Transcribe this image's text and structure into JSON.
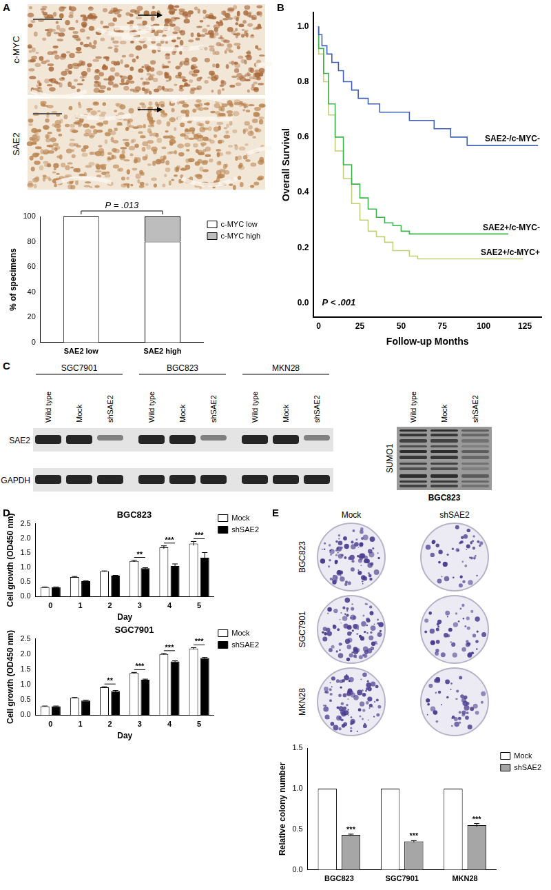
{
  "panel_labels": [
    "A",
    "B",
    "C",
    "D",
    "E"
  ],
  "ihc": {
    "labels": [
      "c-MYC",
      "SAE2"
    ]
  },
  "blot": {
    "groups": [
      "SGC7901",
      "BGC823",
      "MKN28"
    ],
    "lanes": [
      "Wild type",
      "Mock",
      "shSAE2"
    ],
    "rows": [
      "SAE2",
      "GAPDH"
    ],
    "sumo": {
      "lanes": [
        "Wild type",
        "Mock",
        "shSAE2"
      ],
      "row": "SUMO1",
      "cell_line": "BGC823"
    }
  },
  "colonies": {
    "columns": [
      "Mock",
      "shSAE2"
    ],
    "rows": [
      "BGC823",
      "SGC7901",
      "MKN28"
    ]
  },
  "chart_data": [
    {
      "type": "bar",
      "stacked": true,
      "categories": [
        "SAE2 low",
        "SAE2 high"
      ],
      "series": [
        {
          "name": "c-MYC low",
          "color": "#ffffff",
          "values": [
            100,
            80
          ]
        },
        {
          "name": "c-MYC high",
          "color": "#bdbdbd",
          "values": [
            0,
            20
          ]
        }
      ],
      "ylabel": "% of specimens",
      "ylim": [
        0,
        100
      ],
      "yticks": [
        0,
        20,
        40,
        60,
        80,
        100
      ],
      "grid": false,
      "legend": "right",
      "annotations": [
        "P = .013"
      ]
    },
    {
      "type": "line",
      "xlabel": "Follow-up Months",
      "ylabel": "Overall Survival",
      "xlim": [
        -3,
        135
      ],
      "xticks": [
        0,
        25,
        50,
        75,
        100,
        125
      ],
      "ylim": [
        -0.05,
        1.05
      ],
      "yticks": [
        {
          "value": 0,
          "label": "0.0"
        },
        0.2,
        0.4,
        0.6,
        0.8,
        {
          "value": 1,
          "label": "1.0"
        }
      ],
      "grid": false,
      "annotations": [
        "P < .001"
      ],
      "series": [
        {
          "name": "SAE2-/c-MYC-",
          "color": "#3f5fb0",
          "line_style": "step",
          "x": [
            0,
            2,
            5,
            8,
            12,
            15,
            20,
            24,
            30,
            37,
            45,
            55,
            60,
            70,
            80,
            90,
            95,
            133
          ],
          "values": [
            1.0,
            0.97,
            0.93,
            0.9,
            0.87,
            0.84,
            0.8,
            0.77,
            0.74,
            0.72,
            0.69,
            0.69,
            0.66,
            0.66,
            0.63,
            0.6,
            0.57,
            0.57
          ]
        },
        {
          "name": "SAE2+/c-MYC-",
          "color": "#3cb44b",
          "line_style": "step",
          "x": [
            0,
            3,
            6,
            10,
            15,
            20,
            25,
            30,
            35,
            40,
            45,
            50,
            55,
            60,
            80,
            100,
            115
          ],
          "values": [
            1.0,
            0.92,
            0.83,
            0.72,
            0.6,
            0.5,
            0.43,
            0.38,
            0.34,
            0.31,
            0.29,
            0.28,
            0.26,
            0.25,
            0.25,
            0.25,
            0.25
          ]
        },
        {
          "name": "SAE2+/c-MYC+",
          "color": "#c3cf78",
          "line_style": "step",
          "x": [
            0,
            3,
            6,
            10,
            15,
            20,
            25,
            30,
            35,
            40,
            45,
            55,
            60,
            70,
            90,
            124
          ],
          "values": [
            1.0,
            0.9,
            0.8,
            0.68,
            0.55,
            0.45,
            0.36,
            0.3,
            0.26,
            0.24,
            0.22,
            0.19,
            0.17,
            0.16,
            0.16,
            0.16
          ]
        }
      ]
    },
    {
      "type": "bar",
      "title": "BGC823",
      "categories": [
        "0",
        "1",
        "2",
        "3",
        "4",
        "5"
      ],
      "xlabel": "Day",
      "ylabel": "Cell growth (OD450 nm)",
      "ylim": [
        0,
        2.5
      ],
      "yticks": [
        {
          "value": 0,
          "label": "0.0"
        },
        0.5,
        {
          "value": 1,
          "label": "1.0"
        },
        1.5,
        {
          "value": 2,
          "label": "2.0"
        },
        2.5
      ],
      "grid": false,
      "legend": "right",
      "series": [
        {
          "name": "Mock",
          "color": "#ffffff",
          "values": [
            0.32,
            0.67,
            0.87,
            1.22,
            1.69,
            1.82
          ],
          "errors": [
            0.01,
            0.02,
            0.01,
            0.03,
            0.05,
            0.07
          ]
        },
        {
          "name": "shSAE2",
          "color": "#000000",
          "values": [
            0.32,
            0.53,
            0.72,
            0.97,
            1.05,
            1.33
          ],
          "errors": [
            0.01,
            0.01,
            0.01,
            0.02,
            0.07,
            0.18
          ]
        }
      ],
      "significance": [
        {
          "category": "3",
          "label": "**"
        },
        {
          "category": "4",
          "label": "***"
        },
        {
          "category": "5",
          "label": "***"
        }
      ]
    },
    {
      "type": "bar",
      "title": "SGC7901",
      "categories": [
        "0",
        "1",
        "2",
        "3",
        "4",
        "5"
      ],
      "xlabel": "Day",
      "ylabel": "Cell growth (OD450 nm)",
      "ylim": [
        0,
        2.5
      ],
      "yticks": [
        {
          "value": 0,
          "label": "0.0"
        },
        0.5,
        {
          "value": 1,
          "label": "1.0"
        },
        1.5,
        {
          "value": 2,
          "label": "2.0"
        },
        2.5
      ],
      "grid": false,
      "legend": "right",
      "series": [
        {
          "name": "Mock",
          "color": "#ffffff",
          "values": [
            0.29,
            0.57,
            0.91,
            1.38,
            2.0,
            2.18
          ],
          "errors": [
            0.01,
            0.01,
            0.02,
            0.02,
            0.02,
            0.03
          ]
        },
        {
          "name": "shSAE2",
          "color": "#000000",
          "values": [
            0.29,
            0.48,
            0.79,
            1.16,
            1.76,
            1.87
          ],
          "errors": [
            0.01,
            0.01,
            0.02,
            0.02,
            0.02,
            0.02
          ]
        }
      ],
      "significance": [
        {
          "category": "2",
          "label": "**"
        },
        {
          "category": "3",
          "label": "***"
        },
        {
          "category": "4",
          "label": "***"
        },
        {
          "category": "5",
          "label": "***"
        }
      ]
    },
    {
      "type": "bar",
      "categories": [
        "BGC823",
        "SGC7901",
        "MKN28"
      ],
      "ylabel": "Relative colony number",
      "ylim": [
        0,
        1.5
      ],
      "yticks": [
        {
          "value": 0,
          "label": "0.0"
        },
        0.5,
        {
          "value": 1,
          "label": "1.0"
        },
        1.5
      ],
      "grid": false,
      "legend": "right",
      "series": [
        {
          "name": "Mock",
          "color": "#ffffff",
          "values": [
            1,
            1,
            1
          ],
          "errors": [
            0,
            0,
            0
          ]
        },
        {
          "name": "shSAE2",
          "color": "#a6a6a6",
          "values": [
            0.43,
            0.35,
            0.55
          ],
          "errors": [
            0.01,
            0.01,
            0.02
          ]
        }
      ],
      "significance": [
        {
          "category": "BGC823",
          "series": "shSAE2",
          "label": "***"
        },
        {
          "category": "SGC7901",
          "series": "shSAE2",
          "label": "***"
        },
        {
          "category": "MKN28",
          "series": "shSAE2",
          "label": "***"
        }
      ]
    }
  ]
}
